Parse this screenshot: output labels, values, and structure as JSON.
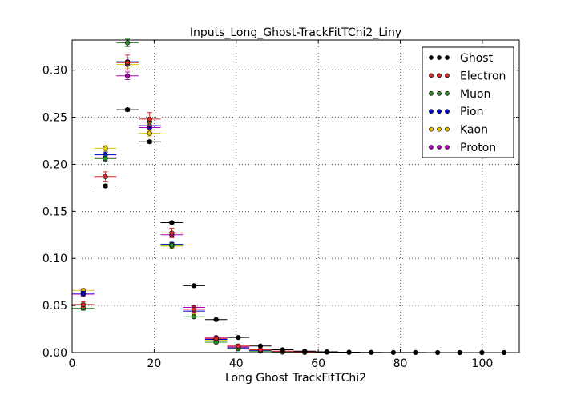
{
  "chart_data": {
    "type": "scatter",
    "title": "Inputs_Long_Ghost-TrackFitTChi2_Liny",
    "xlabel": "Long Ghost TrackFitTChi2",
    "ylabel": "",
    "xlim": [
      0,
      109
    ],
    "ylim": [
      0,
      0.332
    ],
    "xticks": [
      0,
      20,
      40,
      60,
      80,
      100
    ],
    "xtick_labels": [
      "0",
      "20",
      "40",
      "60",
      "80",
      "100"
    ],
    "yticks": [
      0.0,
      0.05,
      0.1,
      0.15,
      0.2,
      0.25,
      0.3
    ],
    "ytick_labels": [
      "0.00",
      "0.05",
      "0.10",
      "0.15",
      "0.20",
      "0.25",
      "0.30"
    ],
    "grid": true,
    "legend_position": "top-right",
    "bin_half_width": 2.7,
    "series": [
      {
        "name": "Ghost",
        "color": "#000000",
        "x": [
          8.1,
          13.5,
          18.9,
          24.3,
          29.7,
          35.1,
          40.5,
          45.9,
          51.3,
          56.7,
          62.1,
          67.5,
          72.9,
          78.3,
          83.7,
          89.1,
          94.5,
          99.9,
          105.3
        ],
        "y": [
          0.177,
          0.258,
          0.224,
          0.138,
          0.071,
          0.035,
          0.016,
          0.007,
          0.003,
          0.0015,
          0.0008,
          0.0004,
          0.0002,
          0.0001,
          0.0001,
          0.0,
          0.0,
          0.0,
          0.0
        ],
        "yerr": [
          0.0015,
          0.0015,
          0.0015,
          0.001,
          0.001,
          0.0008,
          0.0005,
          0.0003,
          0.0002,
          0.0001,
          0.0001,
          0.0,
          0.0,
          0.0,
          0.0,
          0.0,
          0.0,
          0.0,
          0.0
        ]
      },
      {
        "name": "Electron",
        "color": "#d62728",
        "x": [
          2.7,
          8.1,
          13.5,
          18.9,
          24.3,
          29.7,
          35.1,
          40.5,
          45.9,
          51.3,
          56.7,
          62.1,
          67.5
        ],
        "y": [
          0.051,
          0.187,
          0.308,
          0.248,
          0.127,
          0.046,
          0.015,
          0.007,
          0.003,
          0.0015,
          0.0008,
          0.0004,
          0.0002
        ],
        "yerr": [
          0.003,
          0.005,
          0.008,
          0.007,
          0.005,
          0.003,
          0.002,
          0.0012,
          0.0008,
          0.0005,
          0.0003,
          0.0002,
          0.0001
        ]
      },
      {
        "name": "Muon",
        "color": "#2e8b2e",
        "x": [
          2.7,
          8.1,
          13.5,
          18.9,
          24.3,
          29.7,
          35.1,
          40.5,
          45.9,
          51.3,
          56.7
        ],
        "y": [
          0.047,
          0.206,
          0.329,
          0.245,
          0.114,
          0.038,
          0.011,
          0.004,
          0.0015,
          0.0005,
          0.0002
        ],
        "yerr": [
          0.002,
          0.003,
          0.004,
          0.003,
          0.002,
          0.0015,
          0.001,
          0.0006,
          0.0003,
          0.0002,
          0.0001
        ]
      },
      {
        "name": "Pion",
        "color": "#0000cc",
        "x": [
          2.7,
          8.1,
          13.5,
          18.9,
          24.3,
          29.7,
          35.1,
          40.5,
          45.9,
          51.3,
          56.7
        ],
        "y": [
          0.063,
          0.21,
          0.309,
          0.241,
          0.115,
          0.044,
          0.014,
          0.005,
          0.002,
          0.0007,
          0.0003
        ],
        "yerr": [
          0.002,
          0.003,
          0.004,
          0.003,
          0.002,
          0.0015,
          0.001,
          0.0006,
          0.0003,
          0.0002,
          0.0001
        ]
      },
      {
        "name": "Kaon",
        "color": "#e6c200",
        "x": [
          2.7,
          8.1,
          13.5,
          18.9,
          24.3,
          29.7,
          35.1,
          40.5,
          45.9,
          51.3,
          56.7
        ],
        "y": [
          0.066,
          0.217,
          0.306,
          0.233,
          0.113,
          0.042,
          0.013,
          0.005,
          0.002,
          0.0007,
          0.0003
        ],
        "yerr": [
          0.002,
          0.003,
          0.004,
          0.003,
          0.002,
          0.0015,
          0.001,
          0.0006,
          0.0003,
          0.0002,
          0.0001
        ]
      },
      {
        "name": "Proton",
        "color": "#b000b0",
        "x": [
          2.7,
          8.1,
          13.5,
          18.9,
          24.3,
          29.7,
          35.1,
          40.5,
          45.9,
          51.3,
          56.7
        ],
        "y": [
          0.062,
          0.207,
          0.294,
          0.239,
          0.125,
          0.048,
          0.016,
          0.006,
          0.002,
          0.0008,
          0.0003
        ],
        "yerr": [
          0.002,
          0.003,
          0.004,
          0.003,
          0.002,
          0.0015,
          0.001,
          0.0006,
          0.0003,
          0.0002,
          0.0001
        ]
      }
    ]
  }
}
